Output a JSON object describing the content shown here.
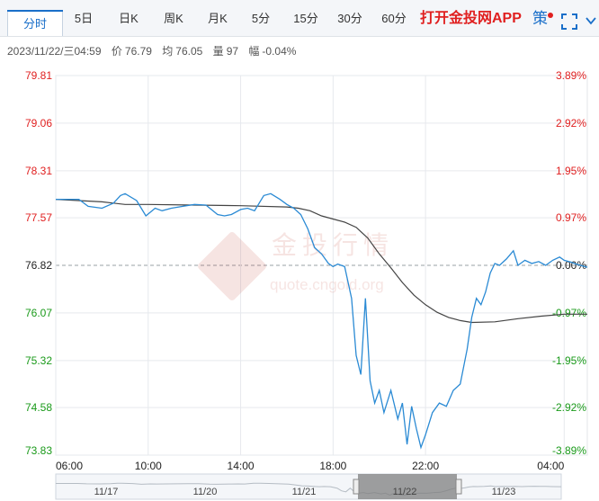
{
  "tabs": [
    {
      "label": "分时",
      "active": true
    },
    {
      "label": "5日"
    },
    {
      "label": "日K"
    },
    {
      "label": "周K"
    },
    {
      "label": "月K"
    },
    {
      "label": "5分"
    },
    {
      "label": "15分"
    },
    {
      "label": "30分"
    },
    {
      "label": "60分"
    }
  ],
  "header": {
    "open_app": "打开金投网APP",
    "strategy": "策",
    "fullscreen_icon": "fullscreen-icon",
    "collapse_icon": "chevron-down-icon"
  },
  "info": {
    "datetime": "2023/11/22/三04:59",
    "price_label": "价",
    "price": "76.79",
    "avg_label": "均",
    "avg": "76.05",
    "vol_label": "量",
    "vol": "97",
    "amp_label": "幅",
    "amp": "-0.04%"
  },
  "watermark": {
    "cn": "金投行情",
    "en": "quote.cngold.org"
  },
  "colors": {
    "up": "#e02020",
    "down": "#1a9a1a",
    "neutral": "#222222",
    "price_line": "#2a8ad4",
    "avg_line": "#444444"
  },
  "chart_data": {
    "type": "line",
    "reference_price": 76.82,
    "ylim": [
      73.83,
      79.81
    ],
    "y_ticks": [
      "79.81",
      "79.06",
      "78.31",
      "77.57",
      "76.82",
      "76.07",
      "75.32",
      "74.58",
      "73.83"
    ],
    "pct_ticks": [
      "3.89%",
      "2.92%",
      "1.95%",
      "0.97%",
      "0.00%",
      "-0.97%",
      "-1.95%",
      "-2.92%",
      "-3.89%"
    ],
    "x_ticks": [
      "06:00",
      "10:00",
      "14:00",
      "18:00",
      "22:00",
      "04:00"
    ],
    "x_tick_hours": [
      0,
      4,
      8,
      12,
      16,
      22
    ],
    "x_range_hours": [
      0,
      23
    ],
    "navigator_dates": [
      "11/17",
      "11/20",
      "11/21",
      "11/22",
      "11/23"
    ],
    "series": [
      {
        "x": [
          0,
          1,
          1.4,
          2,
          2.5,
          2.8,
          3,
          3.5,
          3.9,
          4.3,
          4.6,
          5,
          5.5,
          6,
          6.5,
          7,
          7.3,
          7.6,
          8,
          8.3,
          8.6,
          9,
          9.3,
          9.7,
          10,
          10.3,
          10.6,
          10.9,
          11.2,
          11.5,
          11.8,
          12,
          12.2,
          12.5,
          12.8,
          13,
          13.2,
          13.4,
          13.6,
          13.8,
          14,
          14.2,
          14.5,
          14.8,
          15,
          15.2,
          15.4,
          15.6,
          15.8,
          16,
          16.3,
          16.6,
          16.9,
          17.2,
          17.5,
          17.8,
          18,
          18.2,
          18.4,
          18.6,
          18.8,
          19,
          19.2,
          19.5,
          19.8,
          20,
          20.3,
          20.6,
          20.9,
          21.2,
          21.5,
          21.8,
          22,
          22.3,
          22.6,
          23
        ],
        "values": [
          77.86,
          77.86,
          77.75,
          77.72,
          77.8,
          77.92,
          77.95,
          77.84,
          77.6,
          77.72,
          77.68,
          77.72,
          77.75,
          77.78,
          77.77,
          77.62,
          77.6,
          77.62,
          77.7,
          77.72,
          77.68,
          77.92,
          77.95,
          77.86,
          77.78,
          77.72,
          77.62,
          77.4,
          77.1,
          77.0,
          76.85,
          76.8,
          76.84,
          76.8,
          76.3,
          75.4,
          75.1,
          76.3,
          75.0,
          74.65,
          74.85,
          74.5,
          74.85,
          74.4,
          74.65,
          74.0,
          74.6,
          74.25,
          73.95,
          74.15,
          74.5,
          74.65,
          74.6,
          74.85,
          74.95,
          75.5,
          76.0,
          76.3,
          76.2,
          76.4,
          76.7,
          76.85,
          76.82,
          76.92,
          77.05,
          76.82,
          76.9,
          76.85,
          76.88,
          76.82,
          76.9,
          76.95,
          76.9,
          76.87,
          76.83,
          76.79
        ]
      },
      {
        "x": [
          0,
          2,
          3,
          4,
          6,
          8,
          10,
          10.5,
          11,
          11.5,
          12,
          12.5,
          13,
          13.5,
          14,
          14.5,
          15,
          15.5,
          16,
          16.5,
          17,
          17.5,
          18,
          19,
          20,
          21,
          22,
          23
        ],
        "values": [
          77.86,
          77.82,
          77.78,
          77.78,
          77.77,
          77.76,
          77.74,
          77.72,
          77.68,
          77.6,
          77.55,
          77.5,
          77.42,
          77.25,
          77.0,
          76.78,
          76.55,
          76.35,
          76.2,
          76.08,
          76.0,
          75.95,
          75.92,
          75.93,
          75.98,
          76.02,
          76.05,
          76.05
        ]
      }
    ]
  }
}
